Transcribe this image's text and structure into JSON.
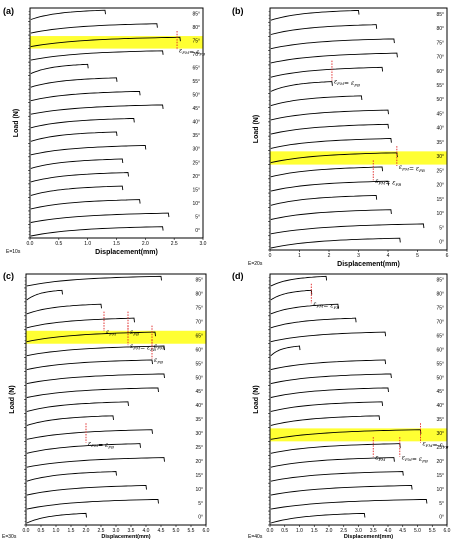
{
  "figure": {
    "panels_meta": [
      {
        "label": "(a)",
        "note": "E=10s",
        "xlabel": "Displacement(mm)",
        "ylabel": "Load (N)"
      },
      {
        "label": "(b)",
        "note": "E=20s",
        "xlabel": "Displacement(mm)",
        "ylabel": "Load (N)"
      },
      {
        "label": "(c)",
        "note": "E=30s",
        "xlabel": "Displacement(mm)",
        "ylabel": "Load (N)"
      },
      {
        "label": "(d)",
        "note": "E=40s",
        "xlabel": "Displacement(mm)",
        "ylabel": "Load (N)"
      }
    ]
  },
  "colors": {
    "line": "#000000",
    "highlight": "#ffff33",
    "marker": "#e02020",
    "axis": "#000000"
  },
  "chart_data": [
    {
      "type": "line",
      "panel": "(a)",
      "xlabel": "Displacement(mm)",
      "ylabel": "Load (N)",
      "xlim": [
        0.0,
        3.0
      ],
      "xticks": [
        "0.0",
        "0.5",
        "1.0",
        "1.5",
        "2.0",
        "2.5",
        "3.0"
      ],
      "note": "E=10s",
      "highlighted_angle": "75°",
      "annotations": [
        {
          "text": "εFM= εFB",
          "angle": "75°",
          "x": 2.55
        }
      ],
      "series": [
        {
          "name": "85°",
          "end_x": 1.3
        },
        {
          "name": "80°",
          "end_x": 2.2
        },
        {
          "name": "75°",
          "end_x": 2.6
        },
        {
          "name": "70°",
          "end_x": 2.3
        },
        {
          "name": "65°",
          "end_x": 1.0
        },
        {
          "name": "55°",
          "end_x": 1.5
        },
        {
          "name": "50°",
          "end_x": 1.9
        },
        {
          "name": "45°",
          "end_x": 2.3
        },
        {
          "name": "40°",
          "end_x": 1.8
        },
        {
          "name": "35°",
          "end_x": 1.5
        },
        {
          "name": "30°",
          "end_x": 2.0
        },
        {
          "name": "25°",
          "end_x": 1.6
        },
        {
          "name": "20°",
          "end_x": 1.7
        },
        {
          "name": "15°",
          "end_x": 1.6
        },
        {
          "name": "10°",
          "end_x": 1.9
        },
        {
          "name": "5°",
          "end_x": 2.4
        },
        {
          "name": "0°",
          "end_x": 2.3
        }
      ]
    },
    {
      "type": "line",
      "panel": "(b)",
      "xlabel": "Displacement(mm)",
      "ylabel": "Load (N)",
      "xlim": [
        0,
        6
      ],
      "xticks": [
        "0",
        "1",
        "2",
        "3",
        "4",
        "5",
        "6"
      ],
      "note": "E=20s",
      "highlighted_angle": "30°",
      "annotations": [
        {
          "text": "εFM= εFB",
          "angle": "60°",
          "x": 2.1
        },
        {
          "text": "εFM= εFB",
          "angle": "30°",
          "x": 4.3
        },
        {
          "text": "εFM= εFB",
          "angle": "25°",
          "x": 3.5
        }
      ],
      "series": [
        {
          "name": "85°",
          "end_x": 3.0
        },
        {
          "name": "80°",
          "end_x": 3.6
        },
        {
          "name": "75°",
          "end_x": 4.2
        },
        {
          "name": "70°",
          "end_x": 4.3
        },
        {
          "name": "60°",
          "end_x": 3.8
        },
        {
          "name": "55°",
          "end_x": 2.1
        },
        {
          "name": "50°",
          "end_x": 3.1
        },
        {
          "name": "45°",
          "end_x": 4.0
        },
        {
          "name": "40°",
          "end_x": 4.0
        },
        {
          "name": "35°",
          "end_x": 4.1
        },
        {
          "name": "30°",
          "end_x": 4.3
        },
        {
          "name": "25°",
          "end_x": 3.8
        },
        {
          "name": "20°",
          "end_x": 4.0
        },
        {
          "name": "15°",
          "end_x": 3.6
        },
        {
          "name": "10°",
          "end_x": 4.1
        },
        {
          "name": "5°",
          "end_x": 5.2
        },
        {
          "name": "0°",
          "end_x": 4.4
        }
      ]
    },
    {
      "type": "line",
      "panel": "(c)",
      "xlabel": "Displacement(mm)",
      "ylabel": "Load (N)",
      "xlim": [
        0.0,
        6.0
      ],
      "xticks": [
        "0.0",
        "0.5",
        "1.0",
        "1.5",
        "2.0",
        "2.5",
        "3.0",
        "3.5",
        "4.0",
        "4.5",
        "5.0",
        "5.5",
        "6.0"
      ],
      "note": "E=30s",
      "highlighted_angle": "65°",
      "annotations": [
        {
          "text": "εFM",
          "angle": "70°",
          "x": 2.6
        },
        {
          "text": "εFB",
          "angle": "70°",
          "x": 3.4
        },
        {
          "text": "εFM= εFB",
          "angle": "65°",
          "x": 3.4
        },
        {
          "text": "εFM",
          "angle": "65°",
          "x": 4.2
        },
        {
          "text": "εFB",
          "angle": "60°",
          "x": 4.2
        },
        {
          "text": "εFM= εFB",
          "angle": "30°",
          "x": 2.0
        }
      ],
      "series": [
        {
          "name": "85°",
          "end_x": 4.5
        },
        {
          "name": "80°",
          "end_x": 1.2
        },
        {
          "name": "75°",
          "end_x": 2.5
        },
        {
          "name": "70°",
          "end_x": 3.6
        },
        {
          "name": "65°",
          "end_x": 4.3
        },
        {
          "name": "60°",
          "end_x": 4.6
        },
        {
          "name": "55°",
          "end_x": 4.2
        },
        {
          "name": "50°",
          "end_x": 4.6
        },
        {
          "name": "45°",
          "end_x": 4.4
        },
        {
          "name": "40°",
          "end_x": 3.4
        },
        {
          "name": "35°",
          "end_x": 2.9
        },
        {
          "name": "30°",
          "end_x": 4.2
        },
        {
          "name": "25°",
          "end_x": 3.8
        },
        {
          "name": "20°",
          "end_x": 4.6
        },
        {
          "name": "15°",
          "end_x": 3.0
        },
        {
          "name": "10°",
          "end_x": 4.0
        },
        {
          "name": "5°",
          "end_x": 4.4
        },
        {
          "name": "0°",
          "end_x": 2.0
        }
      ]
    },
    {
      "type": "line",
      "panel": "(d)",
      "xlabel": "Displacement(mm)",
      "ylabel": "Load (N)",
      "xlim": [
        0.0,
        6.0
      ],
      "xticks": [
        "0.0",
        "0.5",
        "1.0",
        "1.5",
        "2.0",
        "2.5",
        "3.0",
        "3.5",
        "4.0",
        "4.5",
        "5.0",
        "5.5",
        "6.0"
      ],
      "note": "E=40s",
      "highlighted_angle": "30°",
      "annotations": [
        {
          "text": "εFM= εFB",
          "angle": "80°",
          "x": 1.4
        },
        {
          "text": "εFM= εFB",
          "angle": "30°",
          "x": 5.1
        },
        {
          "text": "εFM",
          "angle": "25°",
          "x": 3.5
        },
        {
          "text": "εFM= εFB",
          "angle": "25°",
          "x": 4.4
        }
      ],
      "series": [
        {
          "name": "85°",
          "end_x": 1.9
        },
        {
          "name": "80°",
          "end_x": 1.4
        },
        {
          "name": "75°",
          "end_x": 2.3
        },
        {
          "name": "70°",
          "end_x": 2.9
        },
        {
          "name": "65°",
          "end_x": 3.9
        },
        {
          "name": "60°",
          "end_x": 1.0
        },
        {
          "name": "55°",
          "end_x": 3.9
        },
        {
          "name": "50°",
          "end_x": 4.1
        },
        {
          "name": "45°",
          "end_x": 4.0
        },
        {
          "name": "40°",
          "end_x": 3.8
        },
        {
          "name": "35°",
          "end_x": 3.7
        },
        {
          "name": "30°",
          "end_x": 5.1
        },
        {
          "name": "25°",
          "end_x": 4.4
        },
        {
          "name": "20°",
          "end_x": 4.2
        },
        {
          "name": "15°",
          "end_x": 4.5
        },
        {
          "name": "10°",
          "end_x": 4.8
        },
        {
          "name": "5°",
          "end_x": 5.3
        },
        {
          "name": "0°",
          "end_x": 3.2
        }
      ]
    }
  ]
}
